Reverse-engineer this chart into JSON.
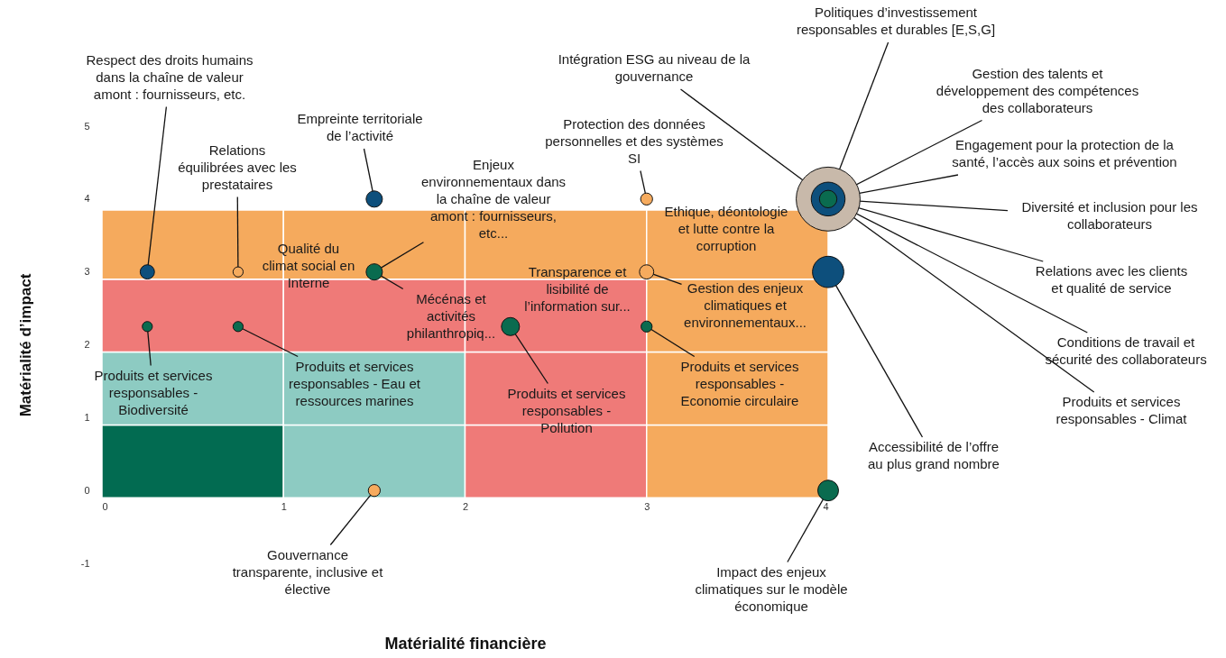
{
  "chart_data": {
    "type": "bubble",
    "xlabel": "Matérialité financière",
    "ylabel": "Matérialité d’impact",
    "xlim": [
      0,
      4
    ],
    "ylim": [
      -1,
      5
    ],
    "xticks": [
      0,
      1,
      2,
      3,
      4
    ],
    "yticks": [
      -1,
      0,
      1,
      2,
      3,
      4,
      5
    ],
    "series": [
      {
        "type": "bar",
        "x": [
          0.5,
          1.5,
          2.5,
          3.5
        ],
        "base": [
          -0.1,
          -0.1,
          -0.1,
          -0.1
        ],
        "values": [
          1,
          1,
          1,
          1
        ],
        "colors": [
          "#026b51",
          "#8dcbc2",
          "#ef7a78",
          "#f5aa5d"
        ]
      },
      {
        "type": "bar",
        "x": [
          0.5,
          1.5,
          2.5,
          3.5
        ],
        "base": [
          0.9,
          0.9,
          0.9,
          0.9
        ],
        "values": [
          1,
          1,
          1,
          1
        ],
        "colors": [
          "#8dcbc2",
          "#8dcbc2",
          "#ef7a78",
          "#f5aa5d"
        ]
      },
      {
        "type": "bar",
        "x": [
          0.5,
          1.5,
          2.5,
          3.5
        ],
        "base": [
          1.9,
          1.9,
          1.9,
          1.9
        ],
        "values": [
          1,
          1,
          1,
          1
        ],
        "colors": [
          "#ef7a78",
          "#ef7a78",
          "#ef7a78",
          "#f5aa5d"
        ]
      },
      {
        "type": "bar",
        "x": [
          0.5,
          1.5,
          2.5,
          3.5
        ],
        "base": [
          2.9,
          2.9,
          2.9,
          2.9
        ],
        "values": [
          0.95,
          0.95,
          0.95,
          0.95
        ],
        "colors": [
          "#f5aa5d",
          "#f5aa5d",
          "#f5aa5d",
          "#f5aa5d"
        ]
      },
      {
        "color": "#c8b9aa",
        "x": [
          4
        ],
        "values": [
          4
        ],
        "sizes": [
          1
        ]
      },
      {
        "color": "#0d4f7c",
        "x": [
          0.25,
          1.5,
          4,
          4
        ],
        "values": [
          3,
          4,
          4,
          3
        ],
        "sizes": [
          0.05,
          0.065,
          0.28,
          0.24
        ]
      },
      {
        "color": "#0a6b4f",
        "x": [
          1.5,
          0.25,
          0.75,
          2.25,
          3,
          4,
          4
        ],
        "values": [
          3,
          2.25,
          2.25,
          2.25,
          2.25,
          0,
          4
        ],
        "sizes": [
          0.065,
          0.025,
          0.025,
          0.08,
          0.03,
          0.105,
          0.075
        ]
      },
      {
        "color": "#f6ab5e",
        "x": [
          0.75,
          3,
          3,
          1.5
        ],
        "values": [
          3,
          4,
          3,
          0
        ],
        "sizes": [
          0.025,
          0.035,
          0.05,
          0.035
        ]
      }
    ],
    "annotations": [
      {
        "text": "Respect des droits humains dans la chaîne de valeur amont : fournisseurs, etc.",
        "x": 0.25,
        "y": 3
      },
      {
        "text": "Relations équilibrées avec les prestataires",
        "x": 0.75,
        "y": 3
      },
      {
        "text": "Empreinte territoriale de l’activité",
        "x": 1.5,
        "y": 4
      },
      {
        "text": "Qualité du climat social en Interne",
        "x": 1.5,
        "y": 3
      },
      {
        "text": "Enjeux environnementaux dans la chaîne de valeur amont : fournisseurs, etc...",
        "x": 1.5,
        "y": 3
      },
      {
        "text": "Mécénas et activités philanthropiq...",
        "x": 1.5,
        "y": 3
      },
      {
        "text": "Protection des données personnelles et des systèmes SI",
        "x": 3,
        "y": 4
      },
      "Ethique, déontologie et lutte contre la corruption",
      {
        "text": "Transparence et lisibilité de l’information sur...",
        "x": 3,
        "y": 3
      },
      {
        "text": "Gestion des enjeux climatiques et environnementaux...",
        "x": 3,
        "y": 3
      },
      {
        "text": "Produits et services responsables - Biodiversité",
        "x": 0.25,
        "y": 2.25
      },
      {
        "text": "Produits et services responsables - Eau et ressources marines",
        "x": 0.75,
        "y": 2.25
      },
      {
        "text": "Produits et services responsables - Pollution",
        "x": 2.25,
        "y": 2.25
      },
      {
        "text": "Produits et services responsables - Economie circulaire",
        "x": 3,
        "y": 2.25
      },
      {
        "text": "Gouvernance transparente, inclusive et élective",
        "x": 1.5,
        "y": 0
      },
      {
        "text": "Politiques d’investissement responsables et durables [E,S,G]",
        "x": 4,
        "y": 4
      },
      {
        "text": "Intégration ESG au niveau de la gouvernance",
        "x": 4,
        "y": 4
      },
      {
        "text": "Gestion des talents et développement des compétences des collaborateurs",
        "x": 4,
        "y": 4
      },
      {
        "text": "Engagement pour la protection de la santé, l’accès aux soins et prévention",
        "x": 4,
        "y": 4
      },
      {
        "text": "Diversité et inclusion pour les collaborateurs",
        "x": 4,
        "y": 4
      },
      {
        "text": "Relations avec les clients et qualité de service",
        "x": 4,
        "y": 4
      },
      {
        "text": "Conditions de travail et sécurité des collaborateurs",
        "x": 4,
        "y": 4
      },
      {
        "text": "Produits et services responsables - Climat",
        "x": 4,
        "y": 4
      },
      {
        "text": "Accessibilité de l’offre au plus grand nombre",
        "x": 4,
        "y": 3
      },
      {
        "text": "Impact des enjeux climatiques sur le modèle économique",
        "x": 4,
        "y": 0
      }
    ]
  }
}
